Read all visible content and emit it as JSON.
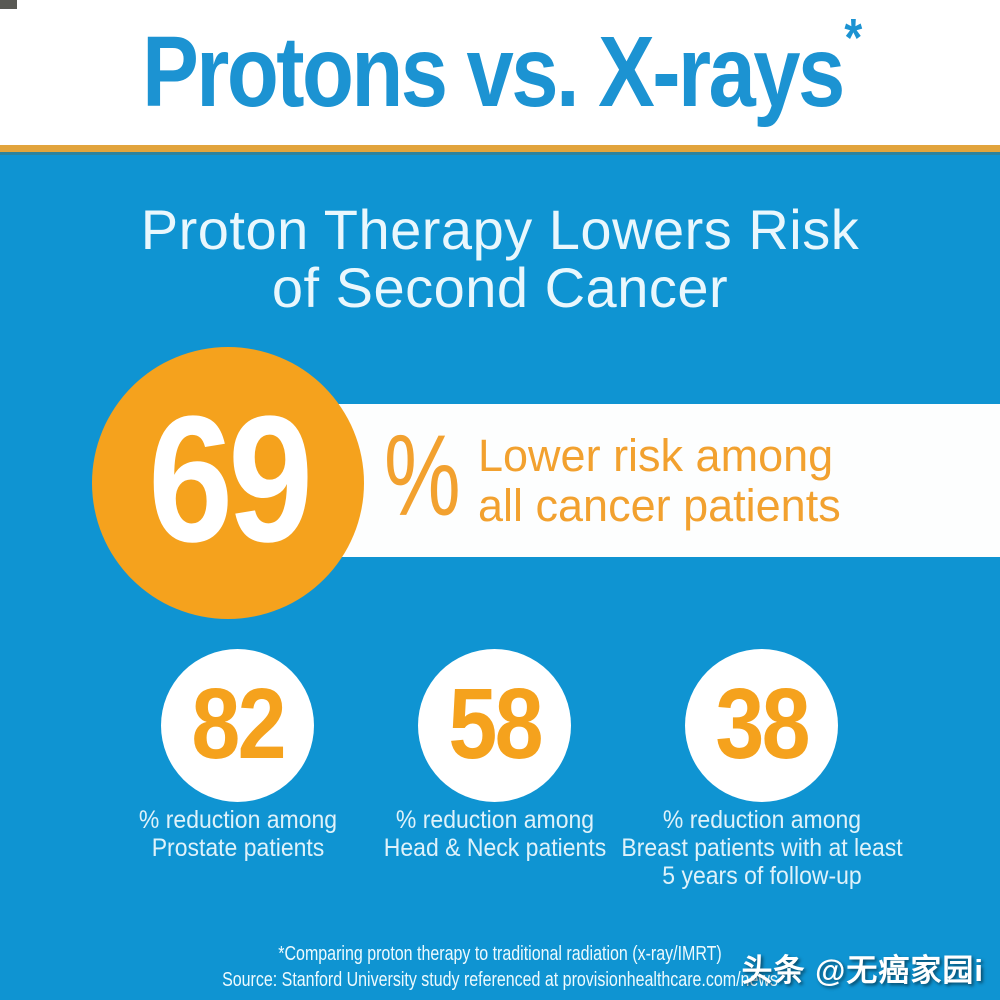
{
  "header": {
    "title": "Protons vs. X-rays",
    "asterisk": "*"
  },
  "subtitle": {
    "line1": "Proton Therapy Lowers Risk",
    "line2": "of Second Cancer"
  },
  "hero": {
    "value": "69",
    "percent_sign": "%",
    "caption_line1": "Lower risk among",
    "caption_line2": "all cancer patients"
  },
  "stats": [
    {
      "value": "82",
      "label_lines": [
        "% reduction among",
        "Prostate patients"
      ]
    },
    {
      "value": "58",
      "label_lines": [
        "% reduction among",
        "Head & Neck patients"
      ]
    },
    {
      "value": "38",
      "label_lines": [
        "% reduction among",
        "Breast patients with at least",
        "5 years of follow-up"
      ]
    }
  ],
  "footer": {
    "note": "*Comparing proton therapy to traditional radiation (x-ray/IMRT)",
    "source": "Source: Stanford University study referenced at provisionhealthcare.com/news"
  },
  "watermark": {
    "text": "头条 @无癌家园i"
  },
  "colors": {
    "background_blue": "#0f94d2",
    "title_blue": "#1c93d2",
    "accent_orange": "#f5a21d",
    "band_text_orange": "#f2a12f",
    "gold_divider": "#e2a43c",
    "pale_text": "#dff2fa",
    "white": "#ffffff"
  },
  "chart_data": {
    "type": "table",
    "title": "Proton Therapy Lowers Risk of Second Cancer",
    "categories": [
      "All cancer patients",
      "Prostate patients",
      "Head & Neck patients",
      "Breast patients with at least 5 years of follow-up"
    ],
    "values": [
      69,
      82,
      58,
      38
    ],
    "unit": "% lower risk / reduction with proton therapy vs x-rays",
    "annotations": [
      "*Comparing proton therapy to traditional radiation (x-ray/IMRT)",
      "Source: Stanford University study referenced at provisionhealthcare.com/news"
    ],
    "legend_position": "none",
    "grid": false
  }
}
